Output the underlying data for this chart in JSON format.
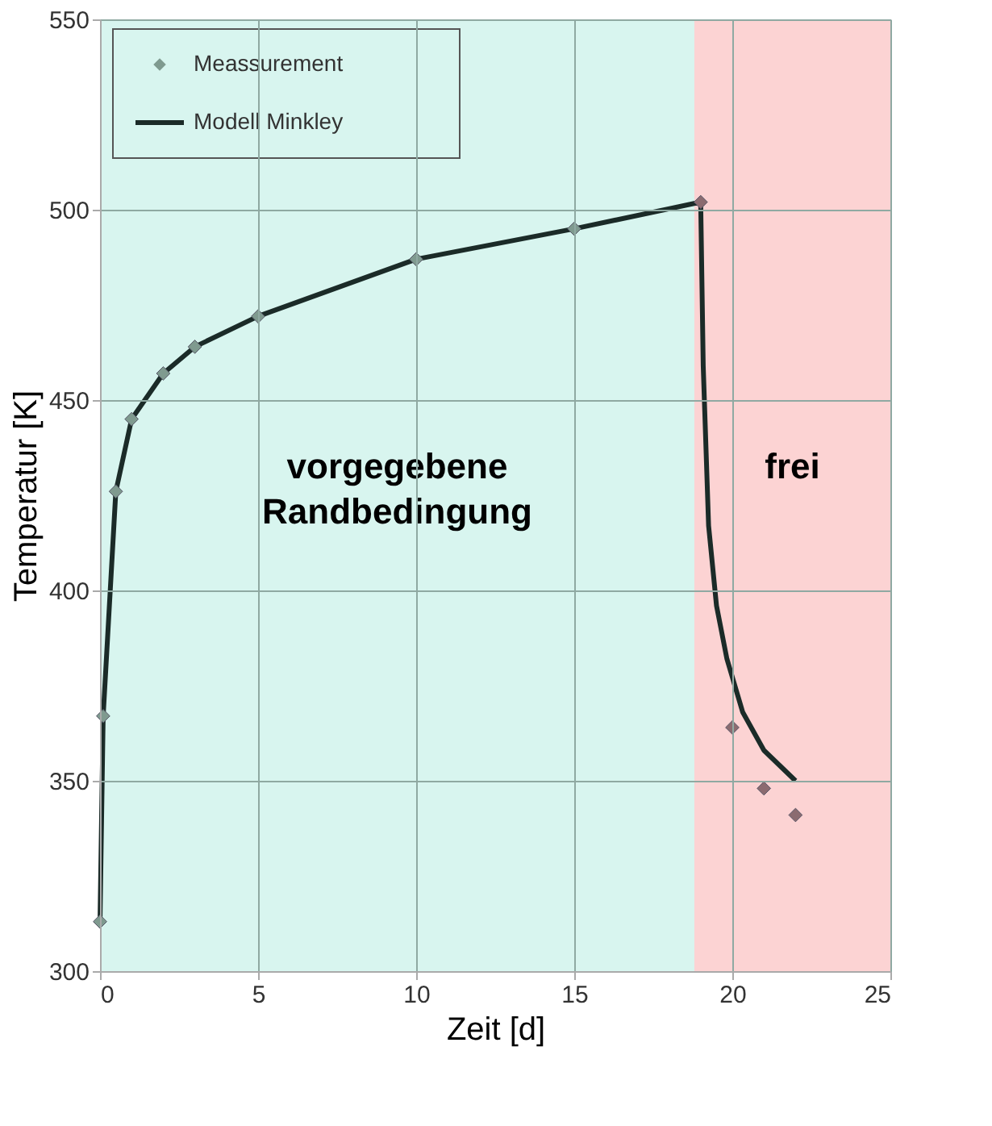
{
  "chart_data": {
    "type": "line",
    "xlabel": "Zeit [d]",
    "ylabel": "Temperatur [K]",
    "xlim": [
      0,
      25
    ],
    "xticks": [
      0,
      5,
      10,
      15,
      20,
      25
    ],
    "ylim": [
      300,
      550
    ],
    "yticks": [
      300,
      350,
      400,
      450,
      500,
      550
    ],
    "grid": true,
    "legend": "top left",
    "series": [
      {
        "name": "Meassurement",
        "type": "scatter",
        "marker": "diamond",
        "x": [
          0,
          0.1,
          0.5,
          1,
          2,
          3,
          5,
          10,
          15,
          19,
          20,
          21,
          22
        ],
        "values": [
          313,
          367,
          426,
          445,
          457,
          464,
          472,
          487,
          495,
          502,
          364,
          348,
          341
        ],
        "color": "#7f9a8f",
        "colors": [
          "#7f9a8f",
          "#7f9a8f",
          "#7f9a8f",
          "#7f9a8f",
          "#7f9a8f",
          "#7f9a8f",
          "#7f9a8f",
          "#7f9a8f",
          "#7f9a8f",
          "#8b6b70",
          "#8b6b70",
          "#8b6b70",
          "#8b6b70"
        ]
      },
      {
        "name": "Modell Minkley",
        "marker": "none",
        "line_style": "solid",
        "x": [
          0,
          0.1,
          0.5,
          1,
          2,
          3,
          5,
          10,
          15,
          19,
          19.08,
          19.25,
          19.5,
          19.83,
          20.33,
          21,
          22
        ],
        "values": [
          313,
          367,
          426,
          445,
          457,
          464,
          472,
          487,
          495,
          502,
          459,
          417,
          396,
          382,
          368,
          358,
          350
        ],
        "color": "#1b2b28"
      }
    ],
    "bands": [
      {
        "axis": "x",
        "from": 0,
        "to": 18.8,
        "label": "vorgegebene Randbedingung",
        "color": "#d8f5ef"
      },
      {
        "axis": "x",
        "from": 18.8,
        "to": 25,
        "label": "frei",
        "color": "#fcd3d3"
      }
    ]
  }
}
